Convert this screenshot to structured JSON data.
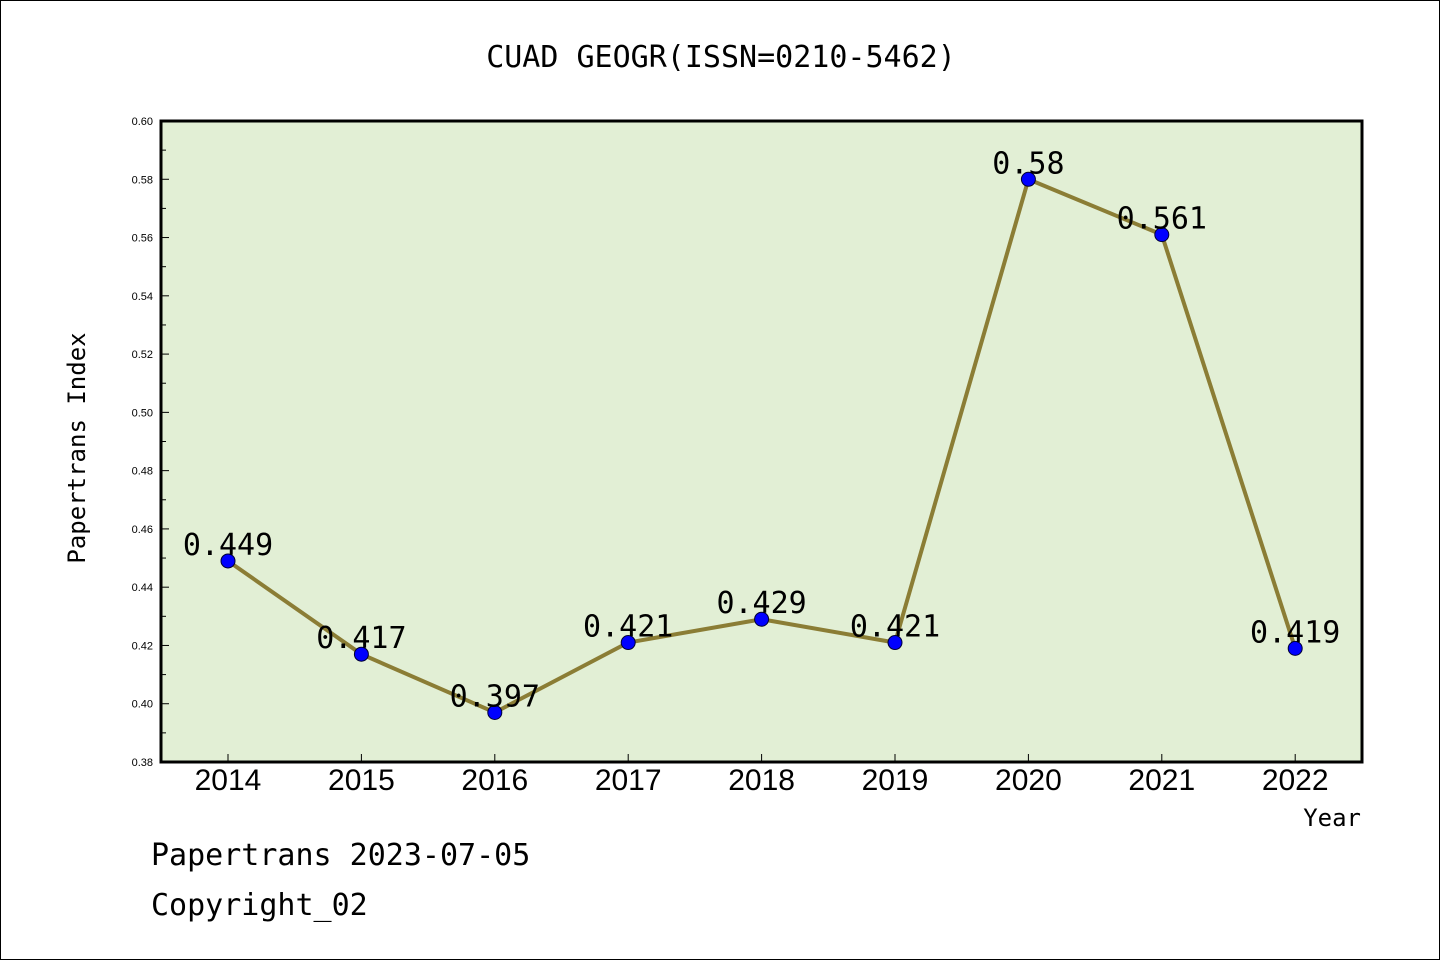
{
  "chart_data": {
    "type": "line",
    "title": "CUAD GEOGR(ISSN=0210-5462)",
    "xlabel": "Year",
    "ylabel": "Papertrans Index",
    "categories": [
      "2014",
      "2015",
      "2016",
      "2017",
      "2018",
      "2019",
      "2020",
      "2021",
      "2022"
    ],
    "values": [
      0.449,
      0.417,
      0.397,
      0.421,
      0.429,
      0.421,
      0.58,
      0.561,
      0.419
    ],
    "data_labels": [
      "0.449",
      "0.417",
      "0.397",
      "0.421",
      "0.429",
      "0.421",
      "0.58",
      "0.561",
      "0.419"
    ],
    "ylim": [
      0.38,
      0.6
    ],
    "yticks": [
      "0.38",
      "0.40",
      "0.42",
      "0.44",
      "0.46",
      "0.48",
      "0.50",
      "0.52",
      "0.54",
      "0.56",
      "0.58",
      "0.60"
    ],
    "grid": false,
    "legend": "none",
    "colors": {
      "plot_background": "#e2efd5",
      "line": "#8b7d35",
      "marker": "#0000ff"
    }
  },
  "footer": {
    "line1": "Papertrans 2023-07-05",
    "line2": "Copyright_02"
  }
}
